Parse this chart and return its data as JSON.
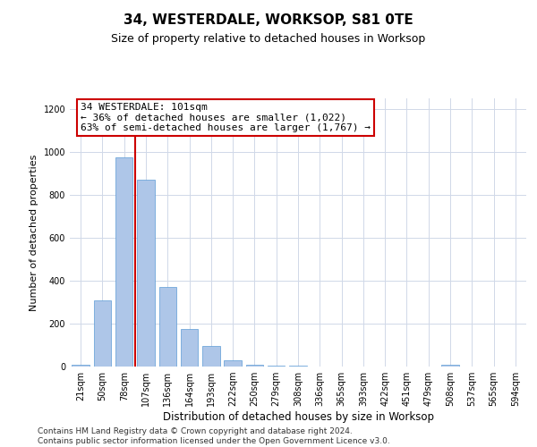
{
  "title": "34, WESTERDALE, WORKSOP, S81 0TE",
  "subtitle": "Size of property relative to detached houses in Worksop",
  "xlabel": "Distribution of detached houses by size in Worksop",
  "ylabel": "Number of detached properties",
  "categories": [
    "21sqm",
    "50sqm",
    "78sqm",
    "107sqm",
    "136sqm",
    "164sqm",
    "193sqm",
    "222sqm",
    "250sqm",
    "279sqm",
    "308sqm",
    "336sqm",
    "365sqm",
    "393sqm",
    "422sqm",
    "451sqm",
    "479sqm",
    "508sqm",
    "537sqm",
    "565sqm",
    "594sqm"
  ],
  "values": [
    10,
    310,
    975,
    870,
    370,
    175,
    95,
    28,
    10,
    5,
    3,
    2,
    2,
    1,
    1,
    1,
    0,
    10,
    0,
    0,
    0
  ],
  "bar_color": "#aec6e8",
  "bar_edge_color": "#5b9bd5",
  "grid_color": "#d0d8e8",
  "annotation_box_color": "#cc0000",
  "annotation_line1": "34 WESTERDALE: 101sqm",
  "annotation_line2": "← 36% of detached houses are smaller (1,022)",
  "annotation_line3": "63% of semi-detached houses are larger (1,767) →",
  "vline_bar_index": 2,
  "vline_color": "#cc0000",
  "ylim": [
    0,
    1250
  ],
  "yticks": [
    0,
    200,
    400,
    600,
    800,
    1000,
    1200
  ],
  "footer_line1": "Contains HM Land Registry data © Crown copyright and database right 2024.",
  "footer_line2": "Contains public sector information licensed under the Open Government Licence v3.0.",
  "title_fontsize": 11,
  "subtitle_fontsize": 9,
  "xlabel_fontsize": 8.5,
  "ylabel_fontsize": 8,
  "tick_fontsize": 7,
  "annotation_fontsize": 8,
  "footer_fontsize": 6.5
}
